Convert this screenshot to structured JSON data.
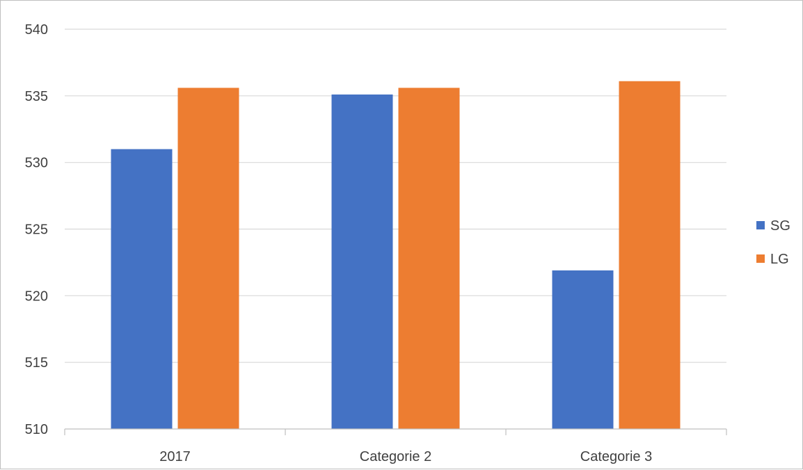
{
  "chart_data": {
    "type": "bar",
    "categories": [
      "2017",
      "Categorie 2",
      "Categorie 3"
    ],
    "series": [
      {
        "name": "SG",
        "values": [
          531.0,
          535.1,
          521.9
        ],
        "color": "#4472C4"
      },
      {
        "name": "LG",
        "values": [
          535.6,
          535.6,
          536.1
        ],
        "color": "#ED7D31"
      }
    ],
    "ylim": [
      510,
      540
    ],
    "yticks": [
      510,
      515,
      520,
      525,
      530,
      535,
      540
    ],
    "ytick_labels": [
      "510",
      "515",
      "520",
      "525",
      "530",
      "535",
      "540"
    ],
    "grid": true,
    "legend_position": "right",
    "title": "",
    "xlabel": "",
    "ylabel": ""
  }
}
